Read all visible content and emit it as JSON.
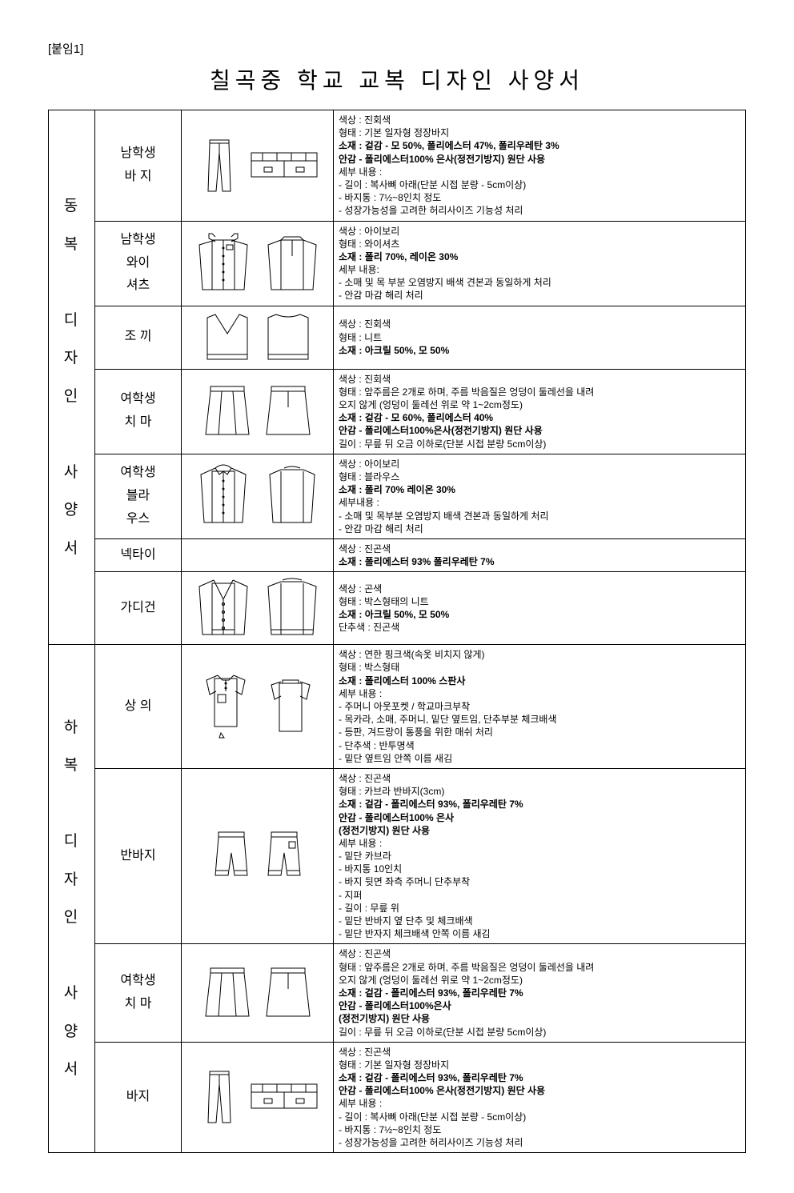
{
  "attachment_label": "[붙임1]",
  "title": "칠곡중 학교 교복 디자인 사양서",
  "sections": [
    {
      "label": "동\n복\n\n디\n자\n인\n\n사\n양\n서",
      "rows": [
        {
          "name": "남학생\n바  지",
          "drawing": "pants",
          "details": "색상 : 진회색\n형태 : 기본 일자형 정장바지\n<b>소재 : 겉감 - 모 50%, 폴리에스터 47%, 폴리우레탄 3%\n       안감 - 폴리에스터100% 은사(정전기방지) 원단 사용</b>\n세부 내용 :\n- 길이 : 복사뼈 아래(단분 시접 분량 - 5cm이상)\n- 바지통 : 7½~8인치 정도\n- 성장가능성을 고려한 허리사이즈 기능성 처리"
        },
        {
          "name": "남학생\n와이\n셔츠",
          "drawing": "shirt",
          "details": "색상 : 아이보리\n형태 : 와이셔츠\n<b>소재 : 폴리 70%,  레이온 30%</b>\n세부 내용:\n- 소매 및 목 부분 오염방지 배색 견본과 동일하게 처리\n- 안감 마감 해리 처리"
        },
        {
          "name": "조  끼",
          "drawing": "vest",
          "details": "색상 : 진회색\n형태 : 니트\n<b>소재 : 아크릴 50%, 모 50%</b>"
        },
        {
          "name": "여학생\n치  마",
          "drawing": "skirt",
          "details": "색상 : 진회색\n형태 : 앞주름은 2개로 하며, 주름 박음질은 엉덩이 둘레선을 내려\n       오지 않게 (엉덩이 둘레선 위로 약 1~2cm정도)\n<b>소재 : 겉감 - 모 60%, 폴리에스터 40%\n       안감 - 폴리에스터100%은사(정전기방지) 원단 사용</b>\n길이 : 무릎 뒤 오금 이하로(단분 시접 분량  5cm이상)"
        },
        {
          "name": "여학생\n블라\n우스",
          "drawing": "blouse",
          "details": "색상 : 아이보리\n형태 : 블라우스\n<b>소재 : 폴리 70% 레이온 30%</b>\n세부내용 :\n- 소매 및 목부분 오염방지 배색 견본과 동일하게 처리\n- 안감 마감 해리 처리"
        },
        {
          "name": "넥타이",
          "drawing": "none",
          "details": "색상 : 진곤색\n<b>소재 : 폴리에스터 93% 폴리우레탄 7%</b>"
        },
        {
          "name": "가디건",
          "drawing": "cardigan",
          "details": "색상 : 곤색\n형태  : 박스형태의 니트\n<b>소재 : 아크릴 50%, 모 50%</b>\n단추색 : 진곤색"
        }
      ]
    },
    {
      "label": "하\n복\n\n디\n자\n인\n\n사\n양\n서",
      "rows": [
        {
          "name": "상    의",
          "drawing": "polo",
          "details": "색상 : 연한 핑크색(속옷 비치지 않게)\n형태 : 박스형태\n<b>소재 : 폴리에스터 100% 스판사</b>\n세부 내용 :\n- 주머니 아웃포켓 / 학교마크부착\n- 목카라, 소매, 주머니, 밑단 옆트임, 단추부분 체크배색\n- 등판, 겨드랑이 통풍을 위한 매쉬 처리\n- 단추색 : 반투명색\n- 밑단 옆트임 안쪽 이름 새김"
        },
        {
          "name": "반바지",
          "drawing": "shorts",
          "details": "색상 : 진곤색\n형태 : 카브라 반바지(3cm)\n<b>소재 : 겉감 - 폴리에스터 93%, 폴리우레탄 7%\n       안감 - 폴리에스터100% 은사\n              (정전기방지) 원단 사용</b>\n세부 내용 :\n- 밑단 카브라\n- 바지통 10인치\n- 바지 뒷면 좌측 주머니 단추부착\n- 지퍼\n- 길이 : 무릎 위\n- 밑단 반바지 옆 단추 및 체크배색\n- 밑단 반자지 체크배색 안쪽 이름 새김"
        },
        {
          "name": "여학생\n치  마",
          "drawing": "skirt",
          "details": "색상 : 진곤색\n형태 : 앞주름은 2개로 하며, 주름 박음질은 엉덩이 둘레선을 내려\n      오지 않게 (엉덩이 둘레선 위로 약 1~2cm정도)\n<b>소재 : 겉감 - 폴리에스터 93%, 폴리우레탄 7%\n       안감 - 폴리에스터100%은사\n              (정전기방지) 원단 사용</b>\n길이 : 무릎 뒤 오금 이하로(단분 시접 분량  5cm이상)"
        },
        {
          "name": "바지",
          "drawing": "pants",
          "details": "색상 : 진곤색\n형태 : 기본 일자형 정장바지\n<b>소재 : 겉감 - 폴리에스터 93%, 폴리우레탄 7%\n       안감 - 폴리에스터100% 은사(정전기방지) 원단 사용</b>\n세부 내용 :\n- 길이 : 복사뼈 아래(단분 시접 분량 - 5cm이상)\n- 바지통 : 7½~8인치 정도\n- 성장가능성을 고려한 허리사이즈 기능성 처리"
        }
      ]
    }
  ]
}
